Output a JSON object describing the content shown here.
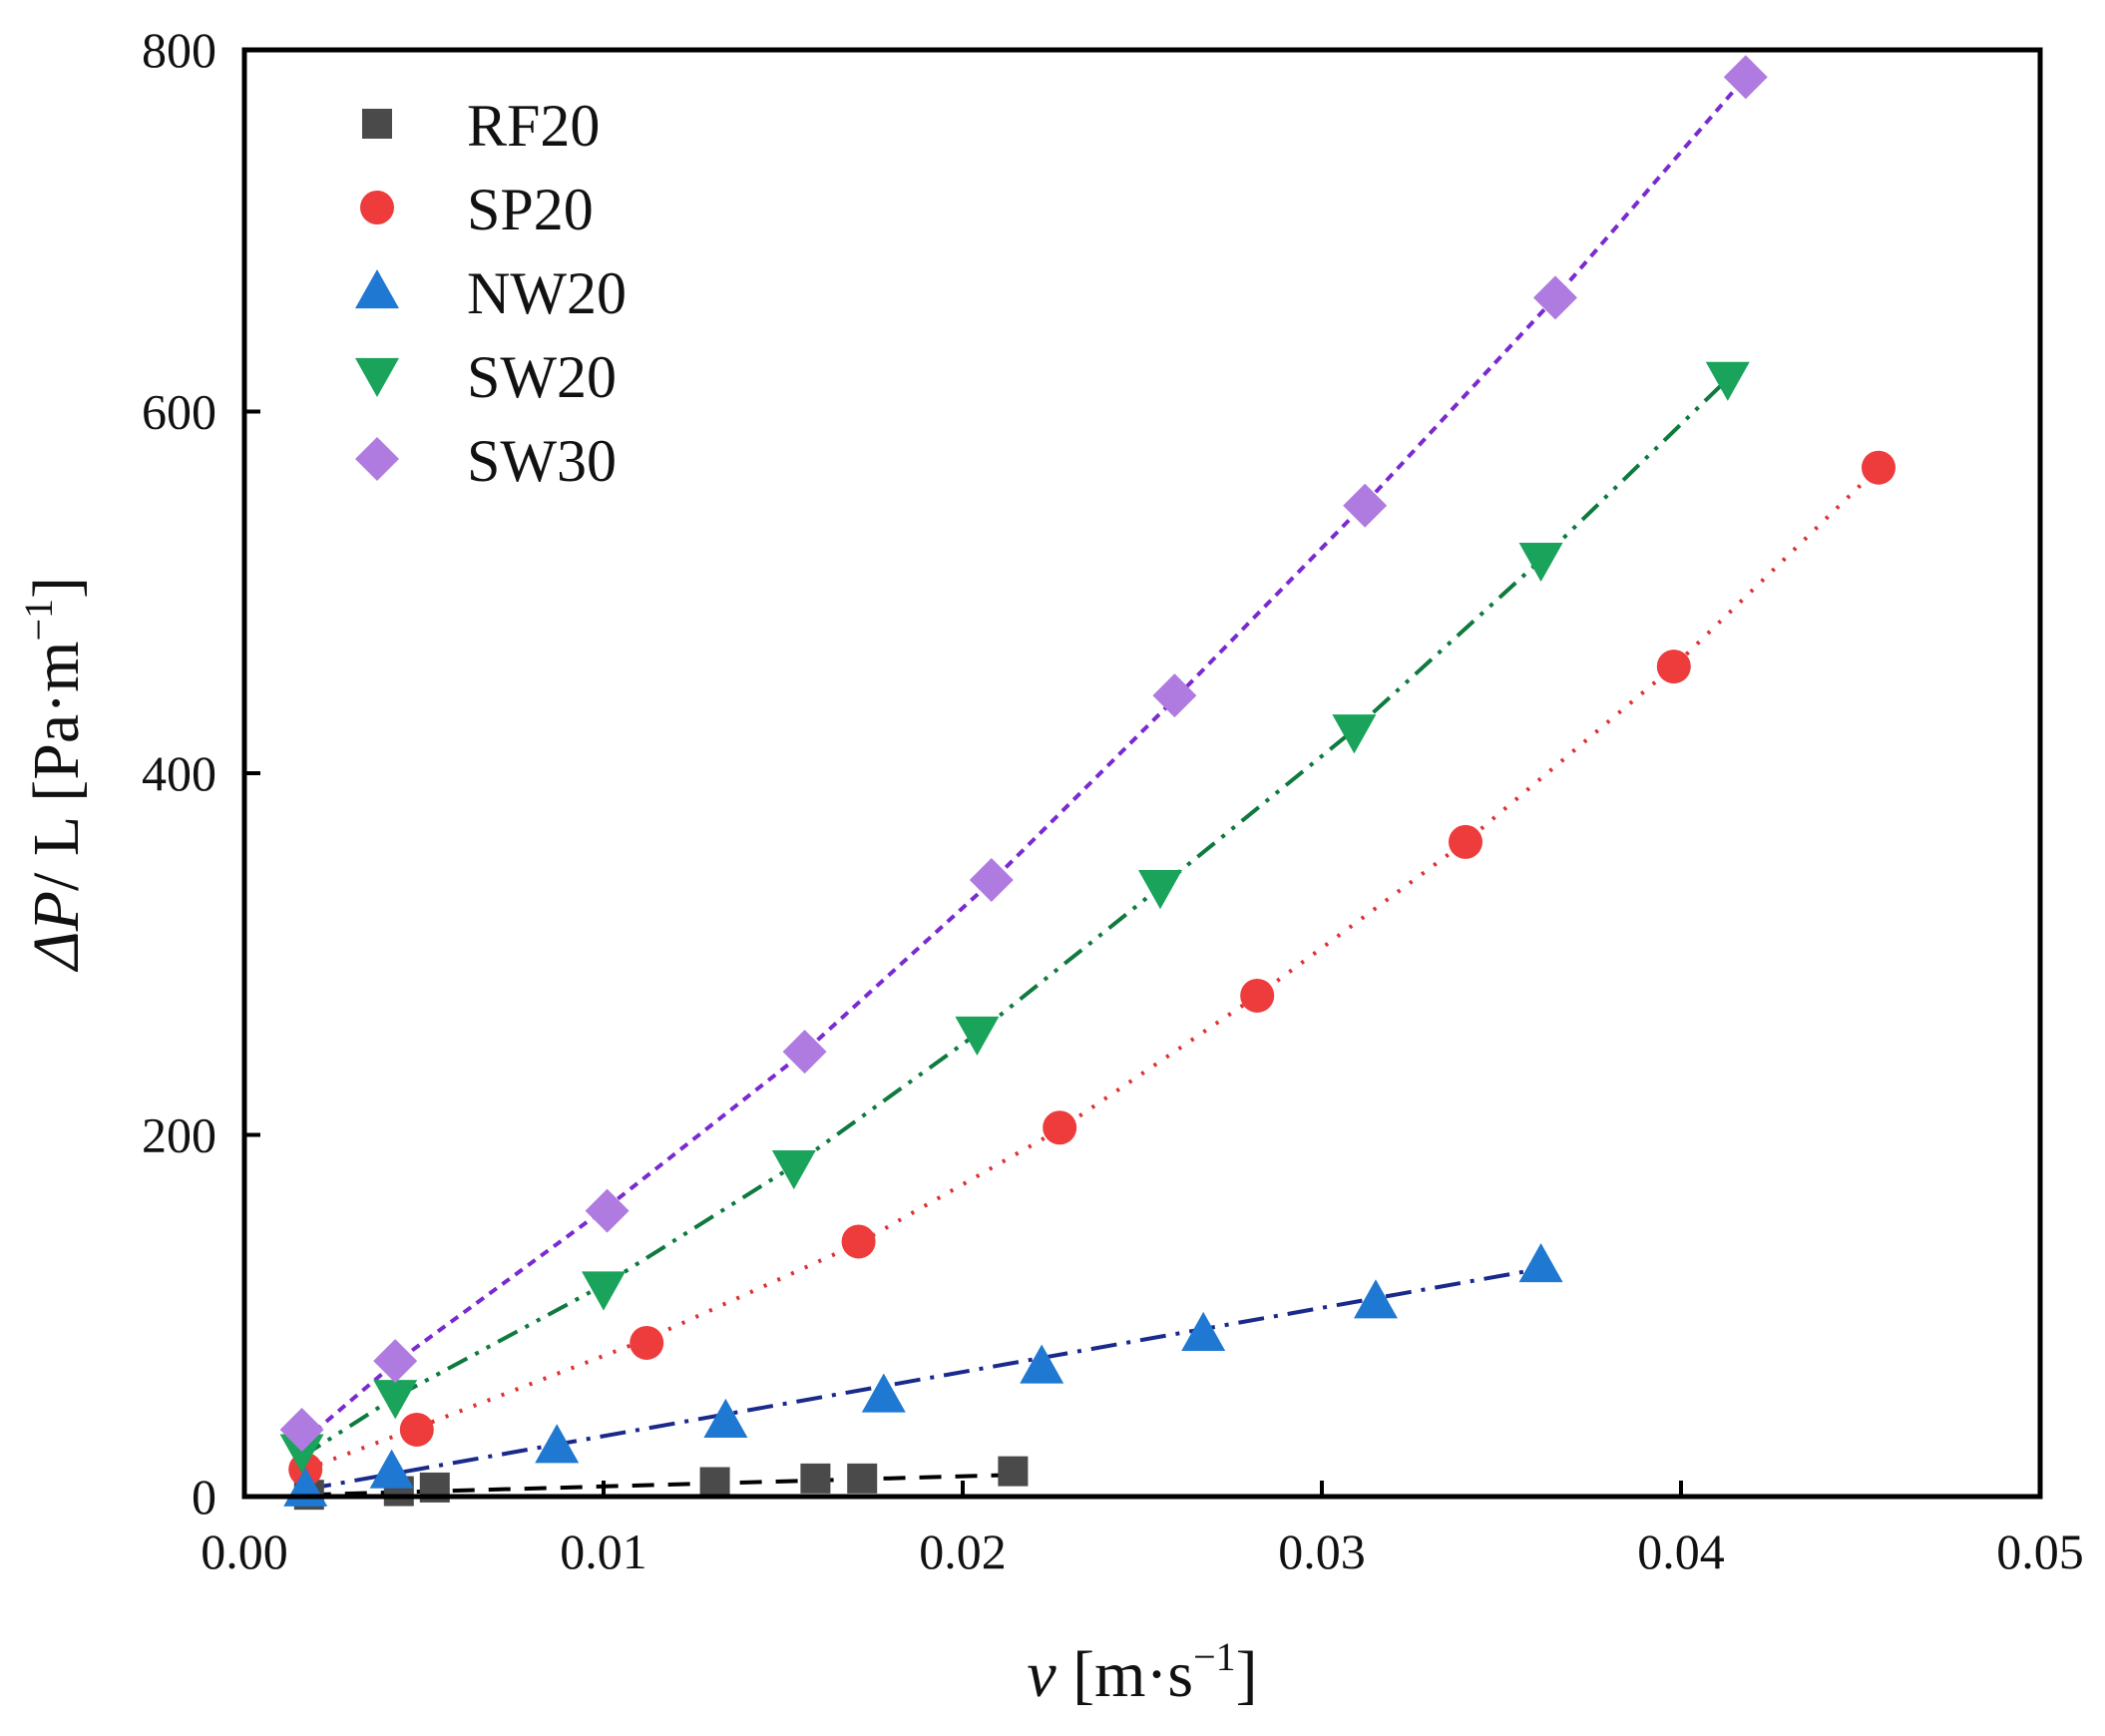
{
  "chart_data": {
    "type": "scatter",
    "title": "",
    "xlabel": {
      "italic": "v",
      "unit": " [m·s",
      "sup": "−1",
      "close": "]"
    },
    "ylabel": {
      "italic": "ΔP",
      "mid": "/ L [Pa·m",
      "sup": "−1",
      "close": "]"
    },
    "xlim": [
      0,
      0.05
    ],
    "ylim": [
      0,
      800
    ],
    "xticks": [
      0.0,
      0.01,
      0.02,
      0.03,
      0.04,
      0.05
    ],
    "xtick_labels": [
      "0.00",
      "0.01",
      "0.02",
      "0.03",
      "0.04",
      "0.05"
    ],
    "yticks": [
      0,
      200,
      400,
      600,
      800
    ],
    "ytick_labels": [
      "0",
      "200",
      "400",
      "600",
      "800"
    ],
    "grid": false,
    "legend_position": "top-left",
    "series": [
      {
        "name": "RF20",
        "marker": "square",
        "color": "#4a4a4a",
        "line_color": "#000000",
        "line_style": "dashed",
        "x": [
          0.0018,
          0.0043,
          0.0053,
          0.0131,
          0.0159,
          0.0172,
          0.0214
        ],
        "y": [
          1,
          3,
          5,
          8,
          10,
          10,
          14
        ],
        "fit_x": [
          0.0018,
          0.0214
        ],
        "fit_y": [
          1,
          12
        ]
      },
      {
        "name": "SP20",
        "marker": "circle",
        "color": "#ee3b3b",
        "line_color": "#e03030",
        "line_style": "dotted",
        "x": [
          0.0017,
          0.0048,
          0.0112,
          0.0171,
          0.0227,
          0.0282,
          0.034,
          0.0398,
          0.0455
        ],
        "y": [
          15,
          37,
          85,
          141,
          204,
          277,
          362,
          459,
          569
        ],
        "fit_x": [
          0.0017,
          0.0048,
          0.0112,
          0.0171,
          0.0227,
          0.0282,
          0.034,
          0.0398,
          0.0455
        ],
        "fit_y": [
          15,
          38,
          87,
          140,
          203,
          277,
          362,
          459,
          569
        ]
      },
      {
        "name": "NW20",
        "marker": "triangle-up",
        "color": "#1f78d1",
        "line_color": "#1a2a8c",
        "line_style": "dashdot",
        "x": [
          0.0017,
          0.0041,
          0.0087,
          0.0134,
          0.0178,
          0.0222,
          0.0267,
          0.0315,
          0.0361
        ],
        "y": [
          4,
          14,
          28,
          42,
          56,
          72,
          90,
          108,
          128
        ],
        "fit_x": [
          0.0017,
          0.0361
        ],
        "fit_y": [
          4,
          126
        ]
      },
      {
        "name": "SW20",
        "marker": "triangle-down",
        "color": "#1aa35a",
        "line_color": "#0e7a3e",
        "line_style": "dashdotdot",
        "x": [
          0.0016,
          0.0042,
          0.01,
          0.0153,
          0.0204,
          0.0255,
          0.0309,
          0.0361,
          0.0413
        ],
        "y": [
          25,
          55,
          115,
          182,
          256,
          337,
          423,
          518,
          618
        ],
        "fit_x": [
          0.0016,
          0.0042,
          0.01,
          0.0153,
          0.0204,
          0.0255,
          0.0309,
          0.0361,
          0.0413
        ],
        "fit_y": [
          22,
          55,
          117,
          183,
          256,
          337,
          424,
          518,
          618
        ]
      },
      {
        "name": "SW30",
        "marker": "diamond",
        "color": "#b07be0",
        "line_color": "#7a2ad0",
        "line_style": "dashed-fine",
        "x": [
          0.0016,
          0.0042,
          0.0101,
          0.0156,
          0.0208,
          0.0259,
          0.0312,
          0.0365,
          0.0418
        ],
        "y": [
          37,
          75,
          158,
          246,
          341,
          443,
          548,
          663,
          785
        ],
        "fit_x": [
          0.0016,
          0.0042,
          0.0101,
          0.0156,
          0.0208,
          0.0259,
          0.0312,
          0.0365,
          0.0418
        ],
        "fit_y": [
          30,
          74,
          160,
          246,
          340,
          441,
          549,
          663,
          785
        ]
      }
    ]
  }
}
